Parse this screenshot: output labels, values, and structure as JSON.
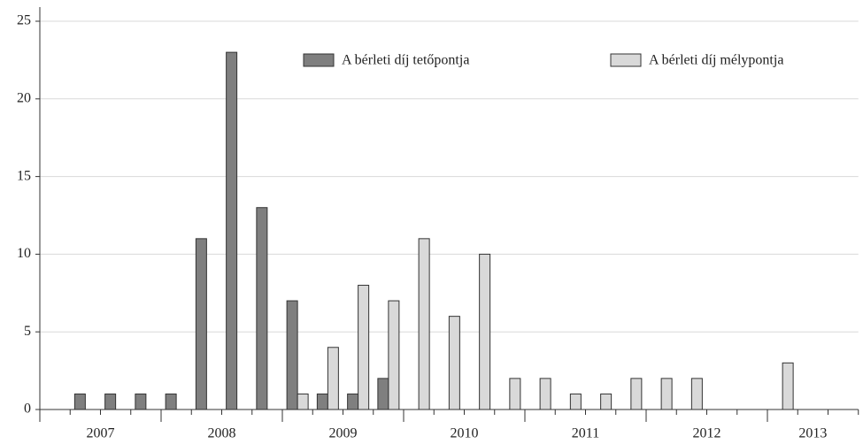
{
  "chart_data": {
    "type": "bar",
    "categories": [
      null,
      null,
      null,
      null,
      null,
      null,
      null,
      null,
      null,
      null,
      null,
      null,
      null,
      null,
      null,
      null,
      null,
      null,
      null,
      null,
      null,
      null,
      null,
      null,
      null,
      null,
      null
    ],
    "year_labels": [
      "2007",
      "2008",
      "2009",
      "2010",
      "2011",
      "2012",
      "2013"
    ],
    "series": [
      {
        "name": "A bérleti díj tetőpontja",
        "color": "#7f7f7f",
        "values": [
          0,
          1,
          1,
          1,
          1,
          11,
          23,
          13,
          7,
          1,
          1,
          2,
          0,
          0,
          0,
          0,
          0,
          0,
          0,
          0,
          0,
          0,
          0,
          0,
          0,
          0,
          0
        ]
      },
      {
        "name": "A bérleti díj mélypontja",
        "color": "#d9d9d9",
        "values": [
          0,
          0,
          0,
          0,
          0,
          0,
          0,
          0,
          1,
          4,
          8,
          7,
          11,
          6,
          10,
          2,
          2,
          1,
          1,
          2,
          2,
          2,
          0,
          0,
          3,
          0,
          0
        ]
      }
    ],
    "ylim": [
      0,
      25
    ],
    "yticks": [
      0,
      5,
      10,
      15,
      20,
      25
    ],
    "grid": true
  }
}
